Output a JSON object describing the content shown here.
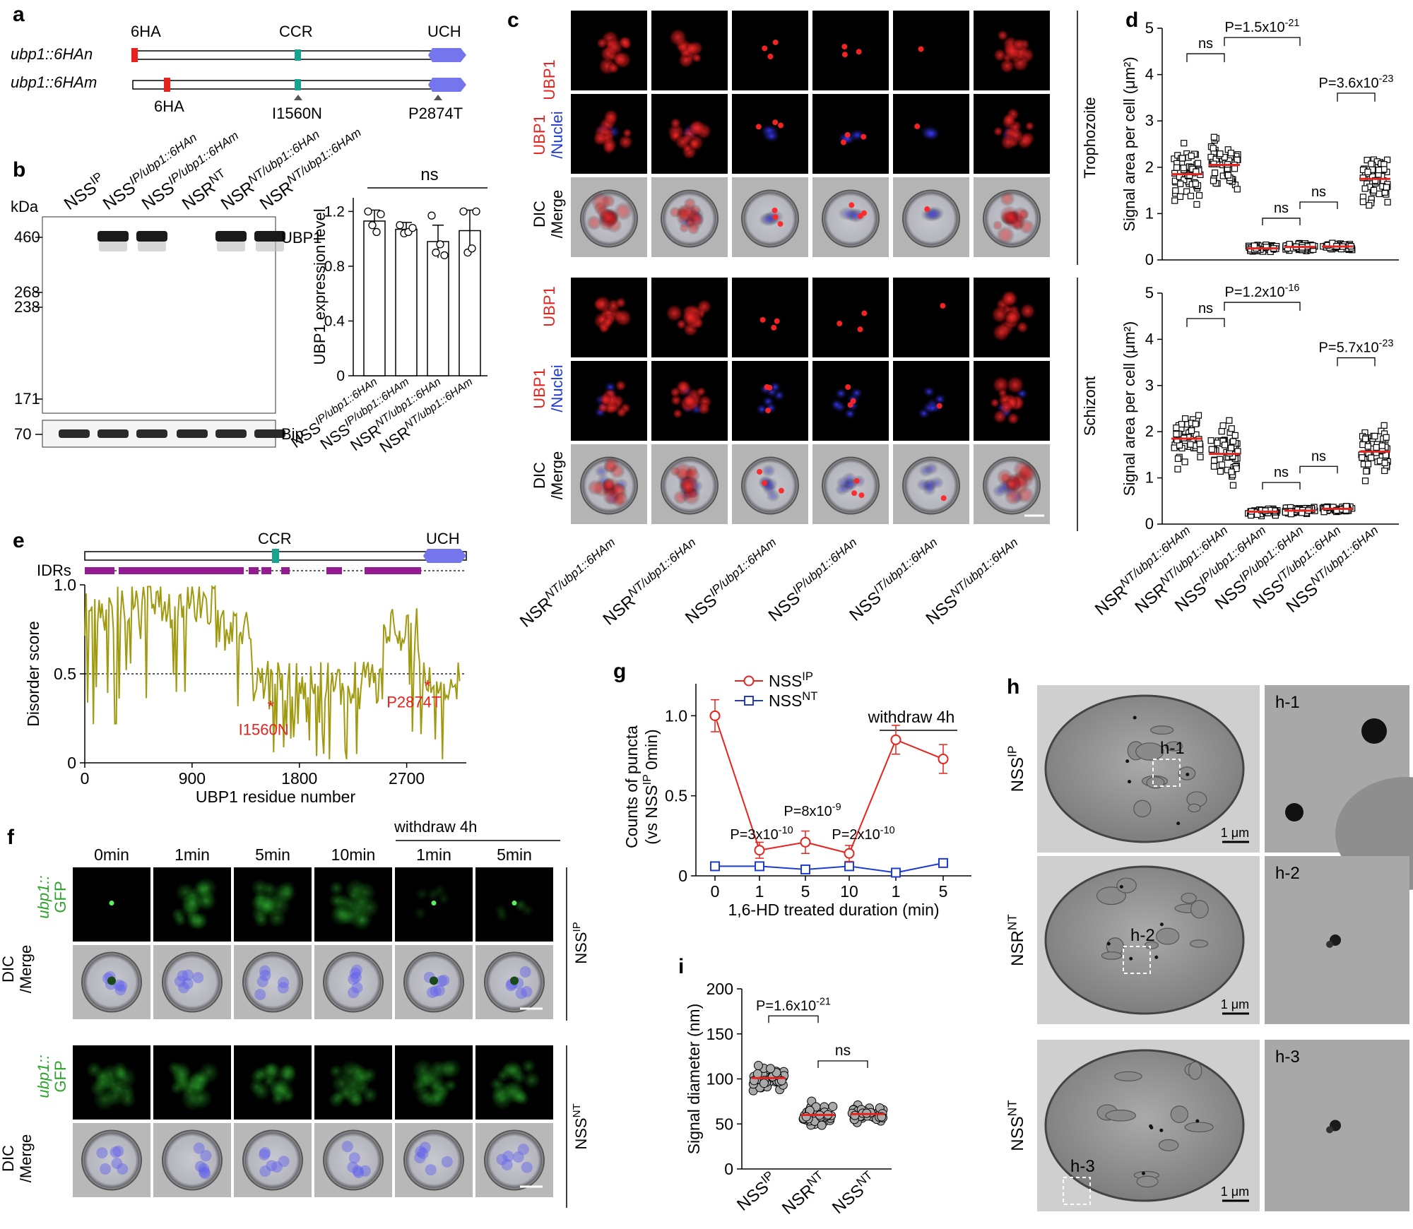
{
  "panels": {
    "a": "a",
    "b": "b",
    "c": "c",
    "d": "d",
    "e": "e",
    "f": "f",
    "g": "g",
    "h": "h",
    "i": "i"
  },
  "colors": {
    "red": "#e8231d",
    "blue": "#1e3bd6",
    "green": "#2aa52a",
    "olive": "#a09a10",
    "purple": "#931c93",
    "teal": "#16a38f",
    "uch": "#7575ee"
  },
  "a": {
    "constructs": [
      "ubp1::6HAn",
      "ubp1::6HAm"
    ],
    "labels": {
      "ha_top": "6HA",
      "ccr": "CCR",
      "uch": "UCH",
      "ha_bottom": "6HA",
      "mut1": "I1560N",
      "mut2": "P2874T"
    }
  },
  "b": {
    "lanes": [
      "NSS",
      "NSS",
      "NSS",
      "NSR",
      "NSR",
      "NSR"
    ],
    "lane_sups": [
      "IP",
      "IP/ubp1::6HAn",
      "IP/ubp1::6HAm",
      "NT",
      "NT/ubp1::6HAn",
      "NT/ubp1::6HAm"
    ],
    "kda": "kDa",
    "markers": [
      "460",
      "268",
      "238",
      "171",
      "70"
    ],
    "bands": {
      "main": "UBP1",
      "loading": "Bip"
    },
    "bar_chart": {
      "ylabel": "UBP1 expression level",
      "yticks": [
        "0",
        "0.4",
        "0.8",
        "1.2"
      ],
      "sig": "ns",
      "cats": [
        "NSS",
        "NSS",
        "NSR",
        "NSR"
      ],
      "cat_sups": [
        "IP/ubp1::6HAn",
        "IP/ubp1::6HAm",
        "NT/ubp1::6HAn",
        "NT/ubp1::6HAm"
      ],
      "values": [
        1.13,
        1.07,
        0.98,
        1.06
      ],
      "errors": [
        0.08,
        0.05,
        0.12,
        0.15
      ],
      "points": [
        [
          1.2,
          1.1,
          1.05,
          1.18
        ],
        [
          1.1,
          1.04,
          1.05,
          1.08
        ],
        [
          1.17,
          0.9,
          0.96,
          0.88
        ],
        [
          1.2,
          0.9,
          0.93,
          1.2
        ]
      ]
    }
  },
  "c": {
    "rows": [
      "UBP1",
      "UBP1",
      "/Nuclei",
      "DIC",
      "/Merge"
    ],
    "stages": [
      "Trophozoite",
      "Schizont"
    ],
    "cols": [
      "NSR",
      "NSR",
      "NSS",
      "NSS",
      "NSS",
      "NSS"
    ],
    "col_sups": [
      "NT/ubp1::6HAm",
      "NT/ubp1::6HAn",
      "IP/ubp1::6HAm",
      "IP/ubp1::6HAn",
      "IT/ubp1::6HAn",
      "NT/ubp1::6HAn"
    ]
  },
  "d": {
    "ylabel": "Signal area per cell (μm²)",
    "yticks": [
      "0",
      "1",
      "2",
      "3",
      "4",
      "5"
    ],
    "cats": [
      "NSR",
      "NSR",
      "NSS",
      "NSS",
      "NSS",
      "NSS"
    ],
    "cat_sups": [
      "NT/ubp1::6HAm",
      "NT/ubp1::6HAn",
      "IP/ubp1::6HAm",
      "IP/ubp1::6HAn",
      "IT/ubp1::6HAn",
      "NT/ubp1::6HAn"
    ],
    "top_means": [
      1.85,
      2.05,
      0.25,
      0.28,
      0.29,
      1.75
    ],
    "bottom_means": [
      1.85,
      1.52,
      0.27,
      0.29,
      0.33,
      1.57
    ],
    "top_p1": "P=1.5x10",
    "top_p1_exp": "-21",
    "top_p2": "P=3.6x10",
    "top_p2_exp": "-23",
    "bottom_p1": "P=1.2x10",
    "bottom_p1_exp": "-16",
    "bottom_p2": "P=5.7x10",
    "bottom_p2_exp": "-23",
    "ns": "ns"
  },
  "e": {
    "domains": {
      "ccr": "CCR",
      "uch": "UCH",
      "idrs": "IDRs"
    },
    "ylabel": "Disorder score",
    "xlabel": "UBP1 residue number",
    "yticks": [
      "0",
      "0.5",
      "1.0"
    ],
    "xticks": [
      "0",
      "900",
      "1800",
      "2700"
    ],
    "mut1": "I1560N",
    "mut2": "P2874T"
  },
  "f": {
    "times": [
      "0min",
      "1min",
      "5min",
      "10min",
      "1min",
      "5min"
    ],
    "withdraw": "withdraw 4h",
    "row_gfp1": "ubp1::",
    "row_gfp2": "GFP",
    "row_dic1": "DIC",
    "row_dic2": "/Merge",
    "strain1": "NSS",
    "strain1_sup": "IP",
    "strain2": "NSS",
    "strain2_sup": "NT"
  },
  "g": {
    "legend": [
      {
        "name": "NSS",
        "sup": "IP"
      },
      {
        "name": "NSS",
        "sup": "NT"
      }
    ],
    "ylabel1": "Counts of puncta",
    "ylabel2": "(vs NSS",
    "ylabel2_sup": "IP",
    "ylabel2_end": " 0min)",
    "xlabel": "1,6-HD treated duration (min)",
    "xticks": [
      "0",
      "1",
      "5",
      "10",
      "1",
      "5"
    ],
    "yticks": [
      "0",
      "0.5",
      "1.0"
    ],
    "withdraw": "withdraw 4h",
    "ip_values": [
      1.0,
      0.16,
      0.21,
      0.14,
      0.85,
      0.73
    ],
    "ip_errors": [
      0.1,
      0.05,
      0.07,
      0.05,
      0.09,
      0.09
    ],
    "nt_values": [
      0.06,
      0.06,
      0.04,
      0.06,
      0.02,
      0.08
    ],
    "p1": "P=3x10",
    "p1_exp": "-10",
    "p2": "P=8x10",
    "p2_exp": "-9",
    "p3": "P=2x10",
    "p3_exp": "-10"
  },
  "h": {
    "rows": [
      {
        "name": "NSS",
        "sup": "IP",
        "inset": "h-1"
      },
      {
        "name": "NSR",
        "sup": "NT",
        "inset": "h-2"
      },
      {
        "name": "NSS",
        "sup": "NT",
        "inset": "h-3"
      }
    ],
    "scale": "1 μm"
  },
  "i": {
    "ylabel": "Signal diameter (nm)",
    "yticks": [
      "0",
      "50",
      "100",
      "150",
      "200"
    ],
    "cats": [
      {
        "name": "NSS",
        "sup": "IP"
      },
      {
        "name": "NSR",
        "sup": "NT"
      },
      {
        "name": "NSS",
        "sup": "NT"
      }
    ],
    "means": [
      101,
      60,
      61
    ],
    "p": "P=1.6x10",
    "p_exp": "-21",
    "ns": "ns"
  }
}
